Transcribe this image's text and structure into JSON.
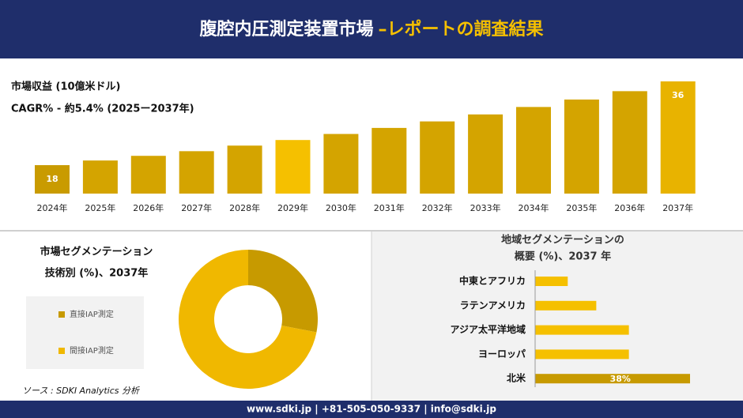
{
  "header": {
    "title": "腹腔内圧測定装置市場",
    "title_accent": "–レポートの調査結果"
  },
  "footer": {
    "text": "www.sdki.jp | +81-505-050-9337 | info@sdki.jp"
  },
  "source": "ソース : SDKI Analytics 分析",
  "chart_data": [
    {
      "type": "bar",
      "title": "市場収益 (10億米ドル)",
      "subtitle": "CAGR% - 約5.4% (2025ー2037年)",
      "categories": [
        "2024年",
        "2025年",
        "2026年",
        "2027年",
        "2028年",
        "2029年",
        "2030年",
        "2031年",
        "2032年",
        "2033年",
        "2034年",
        "2035年",
        "2036年",
        "2037年"
      ],
      "values": [
        18,
        19,
        20,
        21,
        22.2,
        23.4,
        24.7,
        26,
        27.4,
        28.9,
        30.5,
        32.1,
        33.9,
        36
      ],
      "value_labels": [
        "18",
        null,
        null,
        null,
        null,
        null,
        null,
        null,
        null,
        null,
        null,
        null,
        null,
        "36"
      ],
      "colors": [
        "#c99b00",
        "#d4a400",
        "#d4a400",
        "#d4a400",
        "#d4a400",
        "#f5c000",
        "#d4a400",
        "#d4a400",
        "#d4a400",
        "#d4a400",
        "#d4a400",
        "#d4a400",
        "#d4a400",
        "#e8b300"
      ]
    },
    {
      "type": "pie",
      "title": [
        "市場セグメンテーション",
        "技術別 (%)、2037年"
      ],
      "categories": [
        "直接IAP測定",
        "間接IAP測定"
      ],
      "values": [
        28,
        72
      ],
      "colors": [
        "#c79a00",
        "#f0b800"
      ]
    },
    {
      "type": "hbar",
      "title": [
        "地域セグメンテーションの",
        "概要 (%)、2037 年"
      ],
      "categories": [
        "中東とアフリカ",
        "ラテンアメリカ",
        "アジア太平洋地域",
        "ヨーロッパ",
        "北米"
      ],
      "values": [
        8,
        15,
        23,
        23,
        38
      ],
      "value_labels": [
        null,
        null,
        null,
        null,
        "38%"
      ],
      "colors": [
        "#f5c000",
        "#f5c000",
        "#f5c000",
        "#f5c000",
        "#c79a00"
      ]
    }
  ]
}
